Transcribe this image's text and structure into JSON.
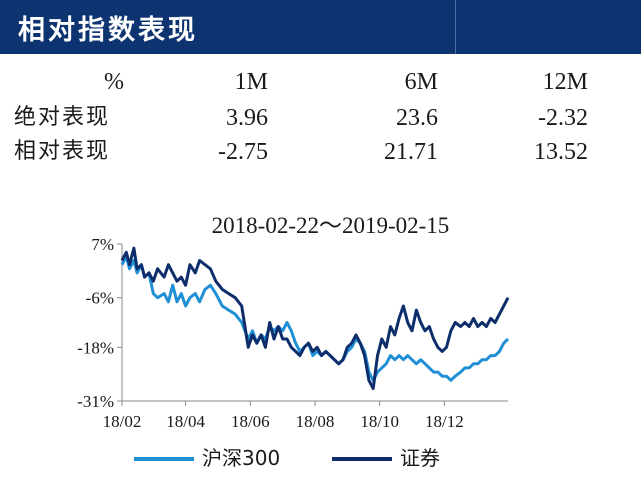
{
  "header": {
    "title": "相对指数表现"
  },
  "table": {
    "columns": [
      "%",
      "1M",
      "6M",
      "12M"
    ],
    "rows": [
      {
        "label": "绝对表现",
        "values": [
          "3.96",
          "23.6",
          "-2.32"
        ]
      },
      {
        "label": "相对表现",
        "values": [
          "-2.75",
          "21.71",
          "13.52"
        ]
      }
    ]
  },
  "chart_data": {
    "type": "line",
    "title": "2018-02-22～2019-02-15",
    "xlabel": "",
    "ylabel": "",
    "x_tick_labels": [
      "18/02",
      "18/04",
      "18/06",
      "18/08",
      "18/10",
      "18/12"
    ],
    "x_tick_dates": [
      "2018-02-22",
      "2018-04-22",
      "2018-06-21",
      "2018-08-20",
      "2018-10-19",
      "2018-12-18"
    ],
    "y_tick_labels": [
      "7%",
      "-6%",
      "-18%",
      "-31%"
    ],
    "y_ticks": [
      7,
      -6,
      -18,
      -31
    ],
    "ylim": [
      -31,
      7
    ],
    "xlim": [
      "2018-02-22",
      "2019-02-15"
    ],
    "grid": false,
    "legend_position": "bottom",
    "series": [
      {
        "name": "沪深300",
        "color": "#1f8fd6",
        "points": [
          [
            "2018-02-22",
            2
          ],
          [
            "2018-02-26",
            4
          ],
          [
            "2018-03-01",
            1
          ],
          [
            "2018-03-05",
            3
          ],
          [
            "2018-03-08",
            0
          ],
          [
            "2018-03-12",
            2
          ],
          [
            "2018-03-15",
            -1
          ],
          [
            "2018-03-19",
            0
          ],
          [
            "2018-03-23",
            -5
          ],
          [
            "2018-03-27",
            -6
          ],
          [
            "2018-04-02",
            -5
          ],
          [
            "2018-04-06",
            -7
          ],
          [
            "2018-04-10",
            -3
          ],
          [
            "2018-04-14",
            -7
          ],
          [
            "2018-04-18",
            -5
          ],
          [
            "2018-04-22",
            -8
          ],
          [
            "2018-04-26",
            -6
          ],
          [
            "2018-05-01",
            -5
          ],
          [
            "2018-05-05",
            -7
          ],
          [
            "2018-05-10",
            -4
          ],
          [
            "2018-05-15",
            -3
          ],
          [
            "2018-05-20",
            -5
          ],
          [
            "2018-05-26",
            -8
          ],
          [
            "2018-06-01",
            -9
          ],
          [
            "2018-06-07",
            -10
          ],
          [
            "2018-06-13",
            -12
          ],
          [
            "2018-06-19",
            -16
          ],
          [
            "2018-06-23",
            -14
          ],
          [
            "2018-06-27",
            -17
          ],
          [
            "2018-07-01",
            -15
          ],
          [
            "2018-07-05",
            -16
          ],
          [
            "2018-07-09",
            -13
          ],
          [
            "2018-07-13",
            -14
          ],
          [
            "2018-07-17",
            -13
          ],
          [
            "2018-07-21",
            -14
          ],
          [
            "2018-07-25",
            -12
          ],
          [
            "2018-07-29",
            -14
          ],
          [
            "2018-08-02",
            -17
          ],
          [
            "2018-08-06",
            -19
          ],
          [
            "2018-08-10",
            -18
          ],
          [
            "2018-08-14",
            -17
          ],
          [
            "2018-08-18",
            -20
          ],
          [
            "2018-08-22",
            -19
          ],
          [
            "2018-08-26",
            -20
          ],
          [
            "2018-08-30",
            -19
          ],
          [
            "2018-09-03",
            -20
          ],
          [
            "2018-09-07",
            -21
          ],
          [
            "2018-09-11",
            -22
          ],
          [
            "2018-09-15",
            -21
          ],
          [
            "2018-09-19",
            -19
          ],
          [
            "2018-09-23",
            -18
          ],
          [
            "2018-09-27",
            -16
          ],
          [
            "2018-10-01",
            -17
          ],
          [
            "2018-10-05",
            -19
          ],
          [
            "2018-10-09",
            -24
          ],
          [
            "2018-10-13",
            -26
          ],
          [
            "2018-10-17",
            -24
          ],
          [
            "2018-10-21",
            -23
          ],
          [
            "2018-10-25",
            -22
          ],
          [
            "2018-10-29",
            -20
          ],
          [
            "2018-11-02",
            -21
          ],
          [
            "2018-11-06",
            -20
          ],
          [
            "2018-11-10",
            -21
          ],
          [
            "2018-11-14",
            -20
          ],
          [
            "2018-11-18",
            -21
          ],
          [
            "2018-11-22",
            -22
          ],
          [
            "2018-11-26",
            -21
          ],
          [
            "2018-11-30",
            -22
          ],
          [
            "2018-12-04",
            -23
          ],
          [
            "2018-12-08",
            -24
          ],
          [
            "2018-12-12",
            -24
          ],
          [
            "2018-12-16",
            -25
          ],
          [
            "2018-12-20",
            -25
          ],
          [
            "2018-12-24",
            -26
          ],
          [
            "2018-12-28",
            -25
          ],
          [
            "2019-01-02",
            -24
          ],
          [
            "2019-01-06",
            -23
          ],
          [
            "2019-01-10",
            -23
          ],
          [
            "2019-01-14",
            -22
          ],
          [
            "2019-01-18",
            -22
          ],
          [
            "2019-01-22",
            -21
          ],
          [
            "2019-01-26",
            -21
          ],
          [
            "2019-01-30",
            -20
          ],
          [
            "2019-02-03",
            -20
          ],
          [
            "2019-02-07",
            -19
          ],
          [
            "2019-02-11",
            -17
          ],
          [
            "2019-02-15",
            -16
          ]
        ]
      },
      {
        "name": "证券",
        "color": "#0d2e6b",
        "points": [
          [
            "2018-02-22",
            3
          ],
          [
            "2018-02-26",
            5
          ],
          [
            "2018-03-01",
            2
          ],
          [
            "2018-03-05",
            6
          ],
          [
            "2018-03-08",
            1
          ],
          [
            "2018-03-12",
            2
          ],
          [
            "2018-03-15",
            -1
          ],
          [
            "2018-03-19",
            0
          ],
          [
            "2018-03-23",
            -2
          ],
          [
            "2018-03-27",
            1
          ],
          [
            "2018-04-02",
            -1
          ],
          [
            "2018-04-06",
            2
          ],
          [
            "2018-04-10",
            0
          ],
          [
            "2018-04-14",
            -2
          ],
          [
            "2018-04-18",
            -1
          ],
          [
            "2018-04-22",
            -3
          ],
          [
            "2018-04-26",
            2
          ],
          [
            "2018-05-01",
            0
          ],
          [
            "2018-05-05",
            3
          ],
          [
            "2018-05-10",
            2
          ],
          [
            "2018-05-15",
            1
          ],
          [
            "2018-05-20",
            -2
          ],
          [
            "2018-05-26",
            -4
          ],
          [
            "2018-06-01",
            -5
          ],
          [
            "2018-06-07",
            -6
          ],
          [
            "2018-06-13",
            -8
          ],
          [
            "2018-06-19",
            -18
          ],
          [
            "2018-06-23",
            -15
          ],
          [
            "2018-06-27",
            -17
          ],
          [
            "2018-07-01",
            -15
          ],
          [
            "2018-07-05",
            -18
          ],
          [
            "2018-07-09",
            -12
          ],
          [
            "2018-07-13",
            -16
          ],
          [
            "2018-07-17",
            -13
          ],
          [
            "2018-07-21",
            -16
          ],
          [
            "2018-07-25",
            -16
          ],
          [
            "2018-07-29",
            -18
          ],
          [
            "2018-08-02",
            -19
          ],
          [
            "2018-08-06",
            -20
          ],
          [
            "2018-08-10",
            -18
          ],
          [
            "2018-08-14",
            -17
          ],
          [
            "2018-08-18",
            -19
          ],
          [
            "2018-08-22",
            -18
          ],
          [
            "2018-08-26",
            -20
          ],
          [
            "2018-08-30",
            -19
          ],
          [
            "2018-09-03",
            -20
          ],
          [
            "2018-09-07",
            -21
          ],
          [
            "2018-09-11",
            -22
          ],
          [
            "2018-09-15",
            -21
          ],
          [
            "2018-09-19",
            -18
          ],
          [
            "2018-09-23",
            -17
          ],
          [
            "2018-09-27",
            -15
          ],
          [
            "2018-10-01",
            -17
          ],
          [
            "2018-10-05",
            -20
          ],
          [
            "2018-10-09",
            -26
          ],
          [
            "2018-10-13",
            -28
          ],
          [
            "2018-10-17",
            -20
          ],
          [
            "2018-10-21",
            -16
          ],
          [
            "2018-10-25",
            -18
          ],
          [
            "2018-10-29",
            -13
          ],
          [
            "2018-11-02",
            -15
          ],
          [
            "2018-11-06",
            -11
          ],
          [
            "2018-11-10",
            -8
          ],
          [
            "2018-11-14",
            -12
          ],
          [
            "2018-11-18",
            -14
          ],
          [
            "2018-11-22",
            -9
          ],
          [
            "2018-11-26",
            -12
          ],
          [
            "2018-11-30",
            -14
          ],
          [
            "2018-12-04",
            -13
          ],
          [
            "2018-12-08",
            -16
          ],
          [
            "2018-12-12",
            -18
          ],
          [
            "2018-12-16",
            -19
          ],
          [
            "2018-12-20",
            -18
          ],
          [
            "2018-12-24",
            -14
          ],
          [
            "2018-12-28",
            -12
          ],
          [
            "2019-01-02",
            -13
          ],
          [
            "2019-01-06",
            -12
          ],
          [
            "2019-01-10",
            -13
          ],
          [
            "2019-01-14",
            -11
          ],
          [
            "2019-01-18",
            -13
          ],
          [
            "2019-01-22",
            -12
          ],
          [
            "2019-01-26",
            -13
          ],
          [
            "2019-01-30",
            -11
          ],
          [
            "2019-02-03",
            -12
          ],
          [
            "2019-02-07",
            -10
          ],
          [
            "2019-02-11",
            -8
          ],
          [
            "2019-02-15",
            -6
          ]
        ]
      }
    ]
  }
}
